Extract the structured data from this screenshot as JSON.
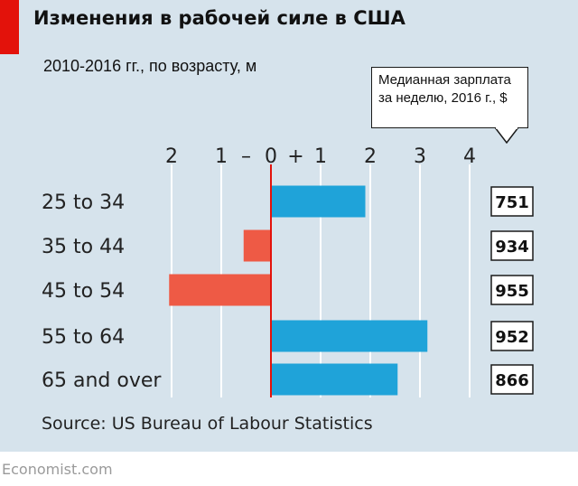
{
  "header": {
    "title": "Изменения в рабочей силе в США",
    "subtitle": "2010-2016 гг., по возрасту, м"
  },
  "callout": {
    "line1": "Медианная зарплата",
    "line2": "за неделю, 2016 г., $"
  },
  "chart_data": {
    "type": "bar",
    "orientation": "horizontal",
    "title": "Изменения в рабочей силе в США",
    "subtitle": "2010-2016 гг., по возрасту, м",
    "categories": [
      "25 to 34",
      "35 to 44",
      "45 to 54",
      "55 to 64",
      "65 and over"
    ],
    "values": [
      1.9,
      -0.55,
      -2.05,
      3.15,
      2.55
    ],
    "xlim": [
      -2,
      4
    ],
    "axis_ticks": [
      {
        "value": -2,
        "label": "2"
      },
      {
        "value": -1,
        "label": "1"
      },
      {
        "value": -0.5,
        "label": "–"
      },
      {
        "value": 0,
        "label": "0"
      },
      {
        "value": 0.5,
        "label": "+"
      },
      {
        "value": 1,
        "label": "1"
      },
      {
        "value": 2,
        "label": "2"
      },
      {
        "value": 3,
        "label": "3"
      },
      {
        "value": 4,
        "label": "4"
      }
    ],
    "grid": true,
    "median_weekly_wage": [
      751,
      934,
      955,
      952,
      866
    ],
    "colors": {
      "positive": "#1fa3d9",
      "negative": "#ee5a45",
      "zero_line": "#e3120b",
      "grid": "#ffffff"
    }
  },
  "source": "Source: US Bureau of Labour Statistics",
  "footer": "Economist.com"
}
